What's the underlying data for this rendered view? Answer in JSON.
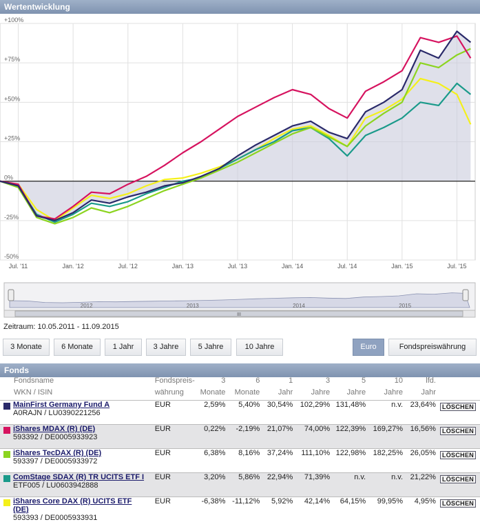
{
  "panel_title": "Wertentwicklung",
  "funds_title": "Fonds",
  "zeitraum": "Zeitraum: 10.05.2011 - 11.09.2015",
  "range_buttons": [
    "3 Monate",
    "6 Monate",
    "1 Jahr",
    "3 Jahre",
    "5 Jahre",
    "10 Jahre"
  ],
  "currency_buttons": {
    "euro": "Euro",
    "fund": "Fondspreiswährung"
  },
  "navigator": {
    "labels": [
      "2012",
      "2013",
      "2014",
      "2015"
    ],
    "scroll_grip": "III"
  },
  "table": {
    "headers_line1": [
      "Fondsname",
      "Fondspreis-",
      "3",
      "6",
      "1",
      "3",
      "5",
      "10",
      "lfd."
    ],
    "headers_line2": [
      "WKN / ISIN",
      "währung",
      "Monate",
      "Monate",
      "Jahr",
      "Jahre",
      "Jahre",
      "Jahre",
      "Jahr"
    ],
    "delete_label": "LÖSCHEN",
    "rows": [
      {
        "name": "MainFirst Germany Fund A",
        "id": "A0RAJN / LU0390221256",
        "color": "#2a2a6a",
        "cur": "EUR",
        "v": [
          "2,59%",
          "5,40%",
          "30,54%",
          "102,29%",
          "131,48%",
          "n.v.",
          "23,64%"
        ]
      },
      {
        "name": "iShares MDAX (R) (DE)",
        "id": "593392 / DE0005933923",
        "color": "#d6135f",
        "cur": "EUR",
        "v": [
          "0,22%",
          "-2,19%",
          "21,07%",
          "74,00%",
          "122,39%",
          "169,27%",
          "16,56%"
        ]
      },
      {
        "name": "iShares TecDAX (R) (DE)",
        "id": "593397 / DE0005933972",
        "color": "#8cd420",
        "cur": "EUR",
        "v": [
          "6,38%",
          "8,16%",
          "37,24%",
          "111,10%",
          "122,98%",
          "182,25%",
          "26,05%"
        ]
      },
      {
        "name": "ComStage SDAX (R) TR UCITS ETF I",
        "id": "ETF005 / LU0603942888",
        "color": "#1a9a8a",
        "cur": "EUR",
        "v": [
          "3,20%",
          "5,86%",
          "22,94%",
          "71,39%",
          "n.v.",
          "n.v.",
          "21,22%"
        ]
      },
      {
        "name": "iShares Core DAX (R) UCITS ETF (DE)",
        "id": "593393 / DE0005933931",
        "color": "#f4f01a",
        "cur": "EUR",
        "v": [
          "-6,38%",
          "-11,12%",
          "5,92%",
          "42,14%",
          "64,15%",
          "99,95%",
          "4,95%"
        ]
      }
    ]
  },
  "chart_data": {
    "type": "line",
    "y_ticks": [
      "+100%",
      "+75%",
      "+50%",
      "+25%",
      "0%",
      "-25%",
      "-50%"
    ],
    "ylim": [
      -50,
      100
    ],
    "x_ticks": [
      "Jul. '11",
      "Jan. '12",
      "Jul. '12",
      "Jan. '13",
      "Jul. '13",
      "Jan. '14",
      "Jul. '14",
      "Jan. '15",
      "Jul. '15"
    ],
    "x": [
      0,
      2,
      4,
      6,
      8,
      10,
      12,
      14,
      16,
      18,
      20,
      22,
      24,
      26,
      28,
      30,
      32,
      34,
      36,
      38,
      40,
      42,
      44,
      46,
      48,
      50,
      51.5
    ],
    "series": [
      {
        "name": "MainFirst Germany Fund A",
        "color": "#2a2a6a",
        "values": [
          0,
          -3,
          -22,
          -25,
          -20,
          -12,
          -14,
          -10,
          -7,
          -3,
          -1,
          3,
          8,
          16,
          23,
          29,
          35,
          38,
          31,
          27,
          44,
          50,
          58,
          83,
          78,
          95,
          88
        ]
      },
      {
        "name": "iShares MDAX (R) (DE)",
        "color": "#d6135f",
        "values": [
          0,
          -2,
          -22,
          -24,
          -16,
          -7,
          -8,
          -2,
          3,
          10,
          18,
          25,
          33,
          41,
          47,
          53,
          58,
          55,
          46,
          40,
          57,
          63,
          70,
          91,
          88,
          92,
          78
        ]
      },
      {
        "name": "iShares TecDAX (R) (DE)",
        "color": "#8cd420",
        "values": [
          0,
          -4,
          -23,
          -27,
          -23,
          -17,
          -20,
          -16,
          -11,
          -6,
          -2,
          2,
          7,
          12,
          18,
          24,
          30,
          34,
          28,
          22,
          35,
          43,
          50,
          75,
          72,
          80,
          84
        ]
      },
      {
        "name": "ComStage SDAX (R) TR UCITS ETF I",
        "color": "#1a9a8a",
        "values": [
          0,
          -3,
          -21,
          -26,
          -21,
          -14,
          -16,
          -13,
          -8,
          -4,
          0,
          2,
          8,
          14,
          20,
          25,
          32,
          34,
          27,
          16,
          29,
          34,
          40,
          50,
          48,
          62,
          55
        ]
      },
      {
        "name": "iShares Core DAX (R) UCITS ETF (DE)",
        "color": "#f4f01a",
        "values": [
          0,
          -2,
          -18,
          -25,
          -17,
          -9,
          -11,
          -8,
          -3,
          1,
          2,
          5,
          9,
          14,
          20,
          27,
          33,
          35,
          29,
          22,
          40,
          45,
          52,
          65,
          62,
          55,
          36
        ]
      }
    ]
  }
}
